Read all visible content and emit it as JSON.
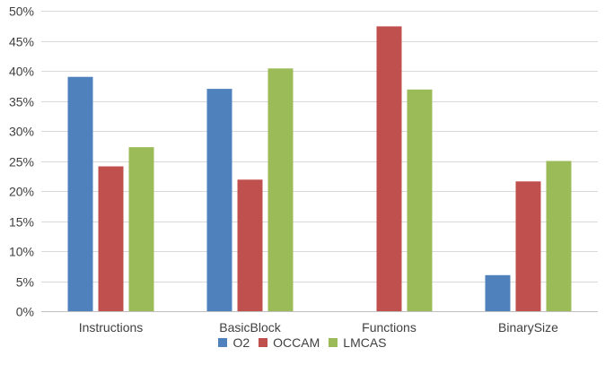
{
  "chart_data": {
    "type": "bar",
    "categories": [
      "Instructions",
      "BasicBlock",
      "Functions",
      "BinarySize"
    ],
    "series": [
      {
        "name": "O2",
        "values": [
          39,
          37,
          0,
          6
        ],
        "color": "#4f81bd"
      },
      {
        "name": "OCCAM",
        "values": [
          24.1,
          21.9,
          47.4,
          21.6
        ],
        "color": "#c0504d"
      },
      {
        "name": "LMCAS",
        "values": [
          27.3,
          40.4,
          36.9,
          25.0
        ],
        "color": "#9bbb59"
      }
    ],
    "ylim": [
      0,
      50
    ],
    "yticks": [
      0,
      5,
      10,
      15,
      20,
      25,
      30,
      35,
      40,
      45,
      50
    ],
    "ytick_labels": [
      "0%",
      "5%",
      "10%",
      "15%",
      "20%",
      "25%",
      "30%",
      "35%",
      "40%",
      "45%",
      "50%"
    ],
    "grid": true,
    "legend_position": "bottom"
  }
}
